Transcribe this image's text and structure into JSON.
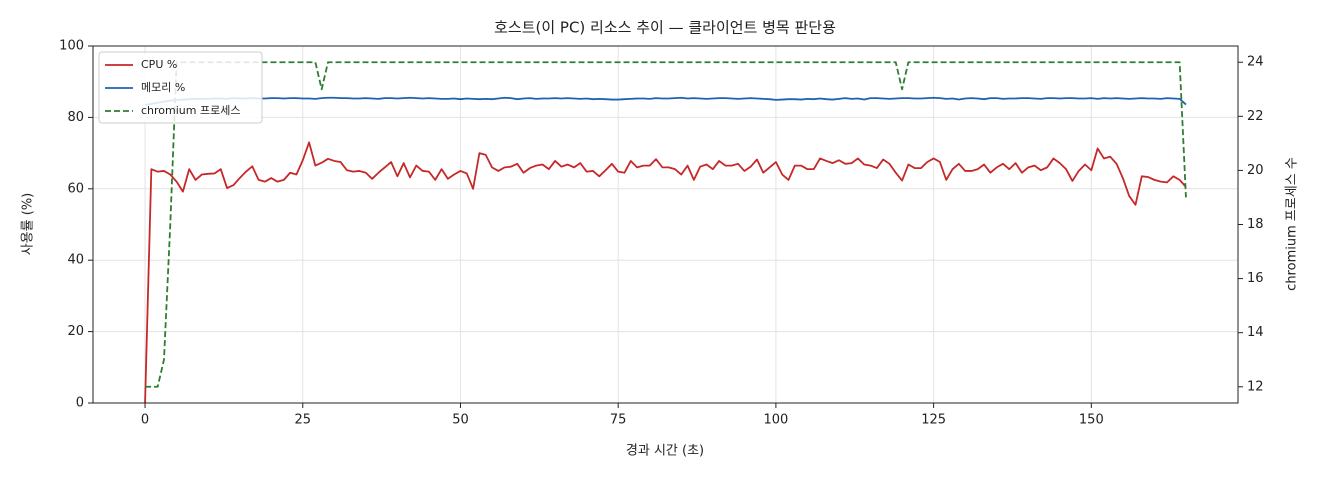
{
  "chart_data": {
    "type": "line",
    "title": "호스트(이 PC) 리소스 추이 — 클라이언트 병목 판단용",
    "x_label": "경과 시간 (초)",
    "y_label": "사용률 (%)",
    "y2_label": "chromium 프로세스 수",
    "x": [
      0,
      1,
      2,
      3,
      4,
      5,
      6,
      7,
      8,
      9,
      10,
      11,
      12,
      13,
      14,
      15,
      16,
      17,
      18,
      19,
      20,
      21,
      22,
      23,
      24,
      25,
      26,
      27,
      28,
      29,
      30,
      31,
      32,
      33,
      34,
      35,
      36,
      37,
      38,
      39,
      40,
      41,
      42,
      43,
      44,
      45,
      46,
      47,
      48,
      49,
      50,
      51,
      52,
      53,
      54,
      55,
      56,
      57,
      58,
      59,
      60,
      61,
      62,
      63,
      64,
      65,
      66,
      67,
      68,
      69,
      70,
      71,
      72,
      73,
      74,
      75,
      76,
      77,
      78,
      79,
      80,
      81,
      82,
      83,
      84,
      85,
      86,
      87,
      88,
      89,
      90,
      91,
      92,
      93,
      94,
      95,
      96,
      97,
      98,
      99,
      100,
      101,
      102,
      103,
      104,
      105,
      106,
      107,
      108,
      109,
      110,
      111,
      112,
      113,
      114,
      115,
      116,
      117,
      118,
      119,
      120,
      121,
      122,
      123,
      124,
      125,
      126,
      127,
      128,
      129,
      130,
      131,
      132,
      133,
      134,
      135,
      136,
      137,
      138,
      139,
      140,
      141,
      142,
      143,
      144,
      145,
      146,
      147,
      148,
      149,
      150,
      151,
      152,
      153,
      154,
      155,
      156,
      157,
      158,
      159,
      160,
      161,
      162,
      163,
      164,
      165
    ],
    "series": [
      {
        "name": "CPU %",
        "color": "#c62828",
        "dash": false,
        "axis": "y",
        "values": [
          0,
          65.5,
          64.8,
          65,
          64,
          62,
          59.2,
          65.5,
          62.5,
          64,
          64.2,
          64.3,
          65.5,
          60.2,
          61,
          63,
          64.8,
          66.3,
          62.5,
          62,
          63,
          62,
          62.5,
          64.5,
          64,
          68,
          73,
          66.5,
          67.3,
          68.4,
          67.8,
          67.5,
          65.2,
          64.8,
          65,
          64.5,
          62.8,
          64.5,
          66,
          67.5,
          63.5,
          67.2,
          63.2,
          66.5,
          65,
          64.8,
          62.5,
          65.5,
          62.8,
          64,
          65,
          64.3,
          60,
          70,
          69.5,
          66,
          65,
          66,
          66.2,
          67,
          64.5,
          65.8,
          66.5,
          66.8,
          65.5,
          67.8,
          66.2,
          66.8,
          66,
          67.2,
          64.8,
          65,
          63.5,
          65.2,
          67,
          64.8,
          64.5,
          67.8,
          66,
          66.5,
          66.5,
          68.3,
          66,
          66,
          65.5,
          64,
          66.5,
          62.5,
          66.2,
          66.8,
          65.5,
          67.8,
          66.5,
          66.5,
          67,
          65,
          66.2,
          68.2,
          64.5,
          66,
          67.5,
          64,
          62.5,
          66.5,
          66.5,
          65.5,
          65.5,
          68.5,
          67.8,
          67.2,
          68,
          67,
          67.2,
          68.5,
          66.8,
          66.5,
          65.8,
          68.2,
          67,
          64.5,
          62.3,
          66.8,
          65.8,
          65.8,
          67.5,
          68.5,
          67.5,
          62.5,
          65.5,
          67,
          65,
          65,
          65.5,
          66.8,
          64.5,
          66,
          67,
          65.5,
          67.2,
          64.5,
          66,
          66.5,
          65.2,
          66,
          68.5,
          67.2,
          65.5,
          62.2,
          65,
          66.8,
          65.2,
          71.3,
          68.5,
          69,
          67,
          63,
          58,
          55.5,
          63.5,
          63.3,
          62.5,
          62,
          61.8,
          63.5,
          62.5,
          60.5
        ]
      },
      {
        "name": "메모리 %",
        "color": "#1f62b0",
        "dash": false,
        "axis": "y",
        "values": [
          83.5,
          83.8,
          84.1,
          84.4,
          84.7,
          84.9,
          85.0,
          85.1,
          85.2,
          85.2,
          85.2,
          85.3,
          85.3,
          85.2,
          85.4,
          85.3,
          85.3,
          85.4,
          85.3,
          85.3,
          85.4,
          85.4,
          85.3,
          85.4,
          85.4,
          85.3,
          85.3,
          85.2,
          85.4,
          85.5,
          85.5,
          85.4,
          85.4,
          85.3,
          85.3,
          85.4,
          85.3,
          85.2,
          85.4,
          85.4,
          85.3,
          85.4,
          85.5,
          85.4,
          85.3,
          85.4,
          85.3,
          85.2,
          85.2,
          85.3,
          85.1,
          85.3,
          85.2,
          85.1,
          85.2,
          85.1,
          85.3,
          85.5,
          85.4,
          85.1,
          85.3,
          85.4,
          85.2,
          85.3,
          85.3,
          85.4,
          85.3,
          85.4,
          85.3,
          85.2,
          85.3,
          85.1,
          85.2,
          85.1,
          85.0,
          85.0,
          85.1,
          85.2,
          85.3,
          85.3,
          85.2,
          85.4,
          85.3,
          85.3,
          85.4,
          85.5,
          85.3,
          85.4,
          85.3,
          85.2,
          85.3,
          85.4,
          85.4,
          85.3,
          85.2,
          85.3,
          85.4,
          85.3,
          85.2,
          85.1,
          84.9,
          85.0,
          85.1,
          85.1,
          85.0,
          85.2,
          85.1,
          85.3,
          85.1,
          85.0,
          85.2,
          85.4,
          85.2,
          85.3,
          85.0,
          85.4,
          85.4,
          85.3,
          85.2,
          85.3,
          85.4,
          85.4,
          85.3,
          85.3,
          85.4,
          85.5,
          85.4,
          85.2,
          85.3,
          85.0,
          85.3,
          85.4,
          85.3,
          85.1,
          85.4,
          85.4,
          85.2,
          85.3,
          85.3,
          85.4,
          85.4,
          85.3,
          85.2,
          85.4,
          85.4,
          85.3,
          85.4,
          85.4,
          85.3,
          85.3,
          85.4,
          85.2,
          85.4,
          85.3,
          85.4,
          85.3,
          85.2,
          85.3,
          85.4,
          85.3,
          85.3,
          85.2,
          85.4,
          85.3,
          85.2,
          83.6
        ]
      },
      {
        "name": "chromium 프로세스",
        "color": "#2e7d32",
        "dash": true,
        "axis": "y2",
        "values": [
          12,
          12,
          12,
          13,
          18,
          24,
          24,
          24,
          24,
          24,
          24,
          24,
          24,
          24,
          24,
          24,
          24,
          24,
          24,
          24,
          24,
          24,
          24,
          24,
          24,
          24,
          24,
          24,
          23,
          24,
          24,
          24,
          24,
          24,
          24,
          24,
          24,
          24,
          24,
          24,
          24,
          24,
          24,
          24,
          24,
          24,
          24,
          24,
          24,
          24,
          24,
          24,
          24,
          24,
          24,
          24,
          24,
          24,
          24,
          24,
          24,
          24,
          24,
          24,
          24,
          24,
          24,
          24,
          24,
          24,
          24,
          24,
          24,
          24,
          24,
          24,
          24,
          24,
          24,
          24,
          24,
          24,
          24,
          24,
          24,
          24,
          24,
          24,
          24,
          24,
          24,
          24,
          24,
          24,
          24,
          24,
          24,
          24,
          24,
          24,
          24,
          24,
          24,
          24,
          24,
          24,
          24,
          24,
          24,
          24,
          24,
          24,
          24,
          24,
          24,
          24,
          24,
          24,
          24,
          24,
          23,
          24,
          24,
          24,
          24,
          24,
          24,
          24,
          24,
          24,
          24,
          24,
          24,
          24,
          24,
          24,
          24,
          24,
          24,
          24,
          24,
          24,
          24,
          24,
          24,
          24,
          24,
          24,
          24,
          24,
          24,
          24,
          24,
          24,
          24,
          24,
          24,
          24,
          24,
          24,
          24,
          24,
          24,
          24,
          24,
          19
        ]
      }
    ],
    "xlim": [
      -8.25,
      173.25
    ],
    "xticks": [
      0,
      25,
      50,
      75,
      100,
      125,
      150
    ],
    "ylim": [
      0,
      100
    ],
    "yticks": [
      0,
      20,
      40,
      60,
      80,
      100
    ],
    "y2lim": [
      11.4,
      24.6
    ],
    "y2ticks": [
      12,
      14,
      16,
      18,
      20,
      22,
      24
    ],
    "grid": true,
    "legend": "upper left"
  }
}
